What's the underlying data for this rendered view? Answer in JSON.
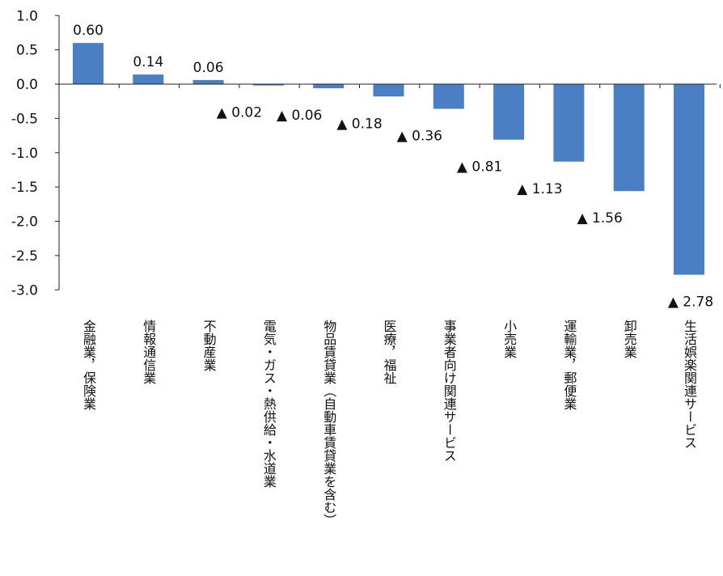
{
  "chart_data": {
    "type": "bar",
    "categories": [
      "金融業，保険業",
      "情報通信業",
      "不動産業",
      "電気・ガス・熱供給・水道業",
      "物品賃貸業（自動車賃貸業を含む）",
      "医療，福祉",
      "事業者向け関連サービス",
      "小売業",
      "運輸業，郵便業",
      "卸売業",
      "生活娯楽関連サービス"
    ],
    "values": [
      0.6,
      0.14,
      0.06,
      -0.02,
      -0.06,
      -0.18,
      -0.36,
      -0.81,
      -1.13,
      -1.56,
      -2.78
    ],
    "data_labels": [
      "0.60",
      "0.14",
      "0.06",
      "▲ 0.02",
      "▲ 0.06",
      "▲ 0.18",
      "▲ 0.36",
      "▲ 0.81",
      "▲ 1.13",
      "▲ 1.56",
      "▲ 2.78"
    ],
    "ylim": [
      -3.0,
      1.0
    ],
    "yticks": [
      "1.0",
      "0.5",
      "0.0",
      "-0.5",
      "-1.0",
      "-1.5",
      "-2.0",
      "-2.5",
      "-3.0"
    ],
    "bar_color": "#4a7fc4",
    "grid": false
  }
}
